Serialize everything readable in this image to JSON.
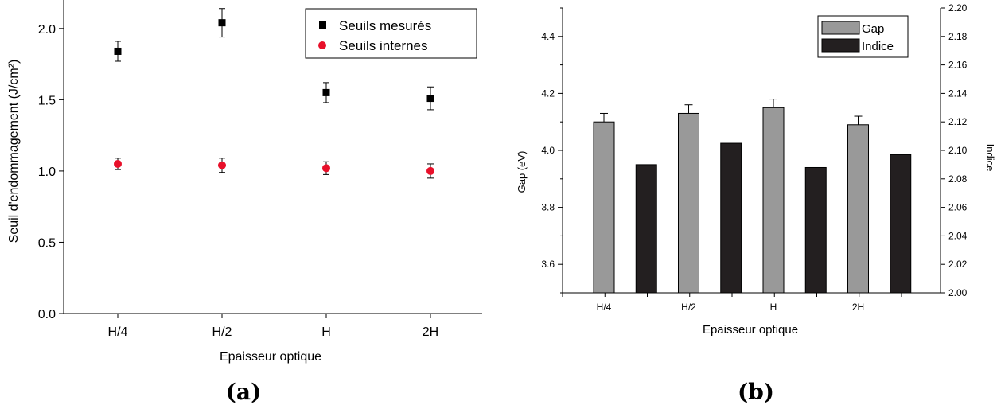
{
  "captions": {
    "a": "(a)",
    "b": "(b)"
  },
  "chart_data": [
    {
      "type": "scatter",
      "categories": [
        "H/4",
        "H/2",
        "H",
        "2H"
      ],
      "xlabel": "Epaisseur optique",
      "ylabel": "Seuil d'endommagement (J/cm²)",
      "ylim": [
        0,
        2.2
      ],
      "yticks": [
        "0.0",
        "0.5",
        "1.0",
        "1.5",
        "2.0"
      ],
      "legend_position": "top-right",
      "series": [
        {
          "name": "Seuils mesurés",
          "marker": "square",
          "color": "#000000",
          "values": [
            1.84,
            2.04,
            1.55,
            1.51
          ],
          "errors": [
            0.07,
            0.1,
            0.07,
            0.08
          ]
        },
        {
          "name": "Seuils internes",
          "marker": "circle",
          "color": "#e8102a",
          "values": [
            1.05,
            1.04,
            1.02,
            1.0
          ],
          "errors": [
            0.04,
            0.05,
            0.045,
            0.05
          ]
        }
      ]
    },
    {
      "type": "bar",
      "categories": [
        "H/4",
        "H/2",
        "H",
        "2H"
      ],
      "xlabel": "Epaisseur optique",
      "ylabel": "Gap (eV)",
      "ylim": [
        3.5,
        4.5
      ],
      "yticks": [
        "3.6",
        "3.8",
        "4.0",
        "4.2",
        "4.4"
      ],
      "y2label": "Indice",
      "y2lim": [
        2.0,
        2.2
      ],
      "y2ticks": [
        "2.00",
        "2.02",
        "2.04",
        "2.06",
        "2.08",
        "2.10",
        "2.12",
        "2.14",
        "2.16",
        "2.18",
        "2.20"
      ],
      "legend_position": "top-right",
      "series": [
        {
          "name": "Gap",
          "axis": "left",
          "color": "#999999",
          "values": [
            4.1,
            4.13,
            4.15,
            4.09
          ],
          "errors": [
            0.03,
            0.03,
            0.03,
            0.03
          ]
        },
        {
          "name": "Indice",
          "axis": "right",
          "color": "#231f20",
          "values": [
            2.09,
            2.105,
            2.088,
            2.097
          ]
        }
      ]
    }
  ]
}
